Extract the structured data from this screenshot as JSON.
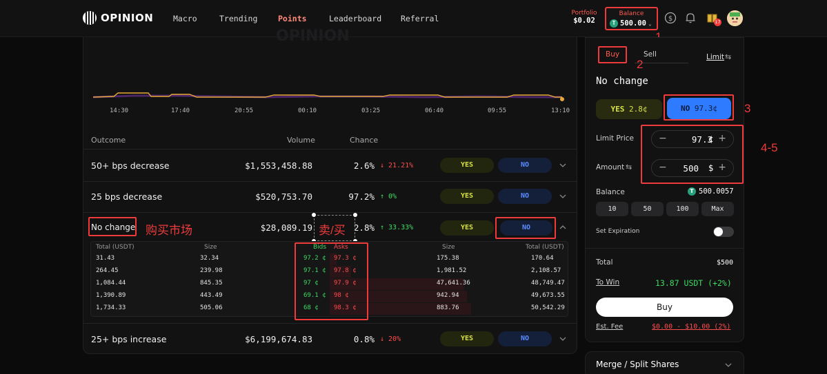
{
  "header": {
    "logo_text": "OPINION",
    "nav": [
      "Macro",
      "Trending",
      "Points",
      "Leaderboard",
      "Referral"
    ],
    "portfolio_label": "Portfolio",
    "portfolio_value": "$0.02",
    "balance_label": "Balance",
    "balance_value": "500.00",
    "notif_count": "17"
  },
  "annotations": {
    "a1": "1",
    "a2": "2",
    "a3": "3",
    "a45": "4-5",
    "buy_market": "购买市场",
    "sell_buy": "卖/买"
  },
  "chart": {
    "watermark": "OPINION",
    "times": [
      "14:30",
      "17:40",
      "20:55",
      "00:10",
      "03:25",
      "06:40",
      "09:55",
      "13:10"
    ]
  },
  "table": {
    "headers": {
      "outcome": "Outcome",
      "volume": "Volume",
      "chance": "Chance"
    },
    "rows": [
      {
        "outcome": "50+ bps decrease",
        "volume": "$1,553,458.88",
        "chance": "2.6%",
        "change": "↓ 21.21%",
        "yes": "YES",
        "no": "NO"
      },
      {
        "outcome": "25 bps decrease",
        "volume": "$520,753.70",
        "chance": "97.2%",
        "change": "↑ 0%",
        "yes": "YES",
        "no": "NO"
      },
      {
        "outcome": "No change",
        "volume": "$28,089.19",
        "chance": "2.8%",
        "change": "↑ 33.33%",
        "yes": "YES",
        "no": "NO"
      },
      {
        "outcome": "25+ bps increase",
        "volume": "$6,199,674.83",
        "chance": "0.8%",
        "change": "↓ 20%",
        "yes": "YES",
        "no": "NO"
      }
    ]
  },
  "orderbook": {
    "headers": {
      "total_l": "Total (USDT)",
      "size_l": "Size",
      "bids": "Bids",
      "asks": "Asks",
      "size_r": "Size",
      "total_r": "Total (USDT)"
    },
    "rows": [
      {
        "total_l": "31.43",
        "size_l": "32.34",
        "bid": "97.2 ¢",
        "ask": "97.3 ¢",
        "size_r": "175.38",
        "total_r": "170.64",
        "depth": 0.05
      },
      {
        "total_l": "264.45",
        "size_l": "239.98",
        "bid": "97.1 ¢",
        "ask": "97.8 ¢",
        "size_r": "1,981.52",
        "total_r": "2,108.57",
        "depth": 0.15
      },
      {
        "total_l": "1,084.44",
        "size_l": "845.35",
        "bid": "97 ¢",
        "ask": "97.9 ¢",
        "size_r": "47,641.36",
        "total_r": "48,749.47",
        "depth": 0.95
      },
      {
        "total_l": "1,390.89",
        "size_l": "443.49",
        "bid": "69.1 ¢",
        "ask": "98 ¢",
        "size_r": "942.94",
        "total_r": "49,673.55",
        "depth": 0.97
      },
      {
        "total_l": "1,734.33",
        "size_l": "505.06",
        "bid": "68 ¢",
        "ask": "98.3 ¢",
        "size_r": "883.76",
        "total_r": "50,542.29",
        "depth": 1.0
      }
    ]
  },
  "trade": {
    "buy_tab": "Buy",
    "sell_tab": "Sell",
    "order_type": "Limit",
    "market_title": "No change",
    "yes_label": "YES",
    "yes_price": "2.8¢",
    "no_label": "NO",
    "no_price": "97.3¢",
    "limit_price_label": "Limit Price",
    "limit_price_value": "97.3",
    "limit_price_unit": "¢",
    "amount_label": "Amount",
    "amount_value": "500",
    "amount_unit": "$",
    "balance_label": "Balance",
    "balance_value": "500.0057",
    "quick": [
      "10",
      "50",
      "100",
      "Max"
    ],
    "expiration_label": "Set Expiration",
    "total_label": "Total",
    "total_value": "$500",
    "towin_label": "To Win",
    "towin_value": "13.87 USDT (+2%)",
    "buy_button": "Buy",
    "fee_label": "Est. Fee",
    "fee_value": "$0.00 - $10.00 (2%)",
    "merge_label": "Merge / Split Shares"
  },
  "colors": {
    "accent_red": "#ef3b3b",
    "no_blue": "#2e7bff",
    "yes_yellow": "#d8e244",
    "up_green": "#3ddc62",
    "down_red": "#ff4d4d"
  }
}
